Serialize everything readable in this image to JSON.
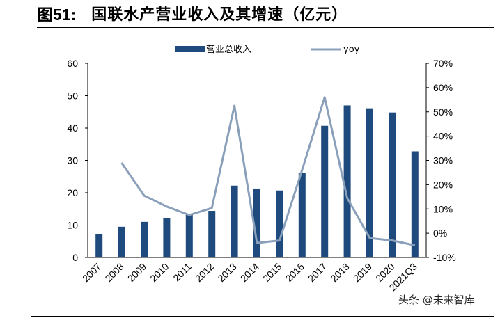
{
  "header": {
    "figure_no": "图51:",
    "title": "国联水产营业收入及其增速（亿元）"
  },
  "watermark": "头条 @未来智库",
  "colors": {
    "bar": "#1f4a7d",
    "line": "#8aa0ba"
  },
  "chart_data": {
    "type": "bar",
    "categories": [
      "2007",
      "2008",
      "2009",
      "2010",
      "2011",
      "2012",
      "2013",
      "2014",
      "2015",
      "2016",
      "2017",
      "2018",
      "2019",
      "2020",
      "2021Q3"
    ],
    "series": [
      {
        "name": "营业总收入",
        "type": "bar",
        "axis": "left",
        "values": [
          7.3,
          9.5,
          11.0,
          12.2,
          13.3,
          14.4,
          22.2,
          21.3,
          20.7,
          26.1,
          40.7,
          47.0,
          46.1,
          44.8,
          32.8
        ]
      },
      {
        "name": "yoy",
        "type": "line",
        "axis": "right",
        "values": [
          null,
          0.29,
          0.155,
          0.11,
          0.075,
          0.104,
          0.525,
          -0.04,
          -0.03,
          0.26,
          0.56,
          0.145,
          -0.02,
          -0.03,
          -0.05
        ]
      }
    ],
    "y_left": {
      "ylim": [
        0,
        60
      ],
      "ticks": [
        0,
        10,
        20,
        30,
        40,
        50,
        60
      ]
    },
    "y_right": {
      "ylim": [
        -0.1,
        0.7
      ],
      "ticks": [
        "-10%",
        "0%",
        "10%",
        "20%",
        "30%",
        "40%",
        "50%",
        "60%",
        "70%"
      ]
    },
    "legend_position": "top-center",
    "grid": false
  }
}
